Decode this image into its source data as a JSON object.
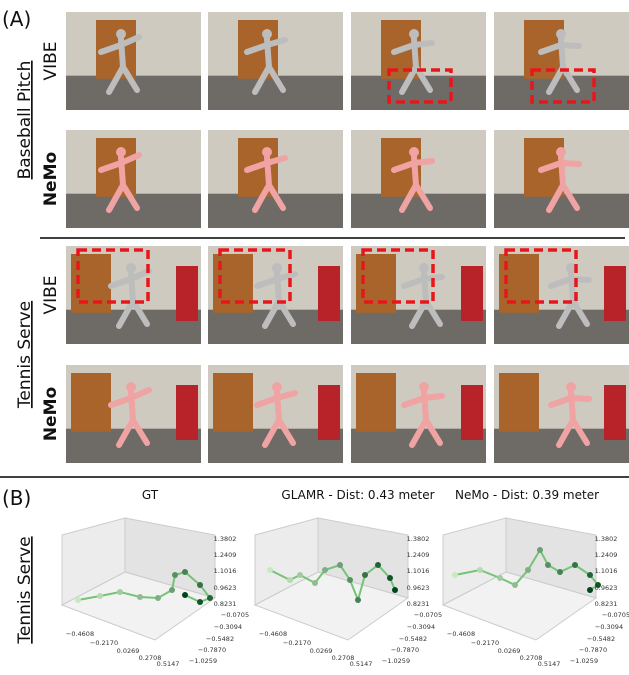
{
  "panel_a": {
    "label": "(A)",
    "groups": [
      {
        "name": "Baseball Pitch",
        "rows": [
          "VIBE",
          "NeMo"
        ]
      },
      {
        "name": "Tennis Serve",
        "rows": [
          "VIBE",
          "NeMo"
        ]
      }
    ]
  },
  "panel_b": {
    "label": "(B)",
    "row_label": "Tennis Serve",
    "plots": [
      {
        "title": "GT"
      },
      {
        "title": "GLAMR - Dist: 0.43 meter"
      },
      {
        "title": "NeMo - Dist: 0.39 meter"
      }
    ],
    "x_ticks": [
      "−0.4608",
      "−0.2170",
      "0.0269",
      "0.2708",
      "0.5147"
    ],
    "y_ticks": [
      "−0.0705",
      "−0.3094",
      "−0.5482",
      "−0.7870",
      "−1.0259"
    ],
    "z_ticks": [
      "1.3802",
      "1.2409",
      "1.1016",
      "0.9623",
      "0.8231"
    ]
  }
}
